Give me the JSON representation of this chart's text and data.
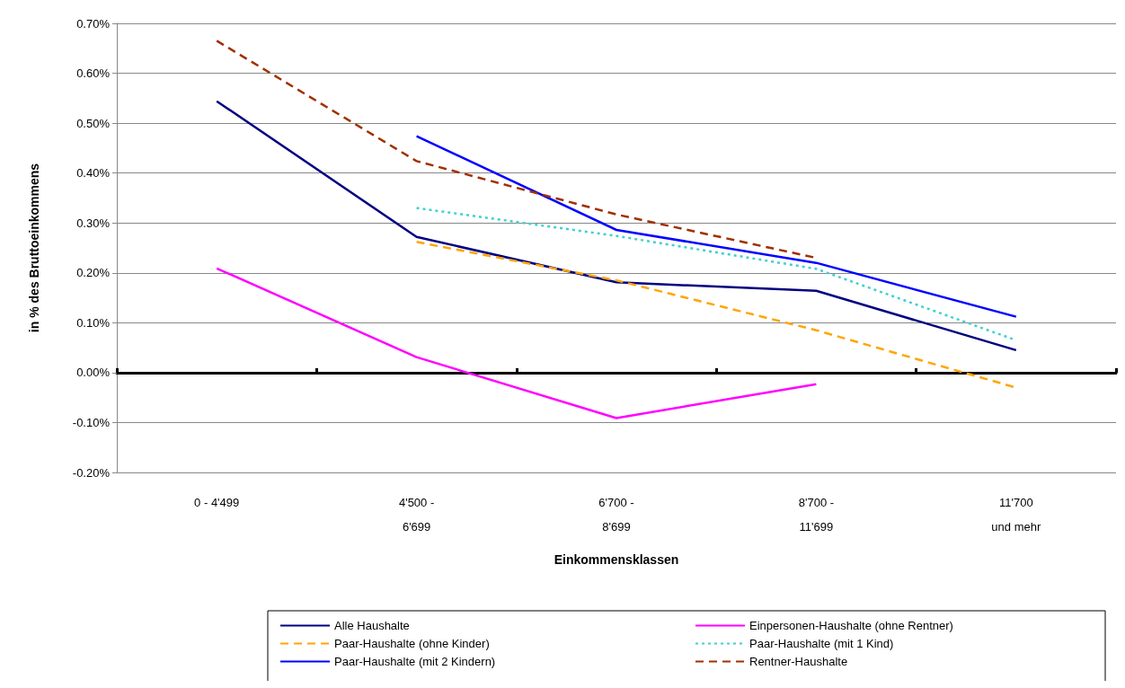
{
  "chart_data": {
    "type": "line",
    "xlabel": "Einkommensklassen",
    "ylabel": "in % des Bruttoeinkommens",
    "categories": [
      "0 - 4'499",
      "4'500 -\n6'699",
      "6'700 -\n8'699",
      "8'700 -\n11'699",
      "11'700\nund mehr"
    ],
    "ylim": [
      -0.2,
      0.7
    ],
    "yticks": [
      {
        "value": -0.2,
        "label": "-0.20%"
      },
      {
        "value": -0.1,
        "label": "-0.10%"
      },
      {
        "value": 0,
        "label": "0.00%"
      },
      {
        "value": 0.1,
        "label": "0.10%"
      },
      {
        "value": 0.2,
        "label": "0.20%"
      },
      {
        "value": 0.3,
        "label": "0.30%"
      },
      {
        "value": 0.4,
        "label": "0.40%"
      },
      {
        "value": 0.5,
        "label": "0.50%"
      },
      {
        "value": 0.6,
        "label": "0.60%"
      },
      {
        "value": 0.7,
        "label": "0.70%"
      }
    ],
    "grid": "y",
    "legend": "bottom",
    "marker": "none",
    "series": [
      {
        "name": "Alle Haushalte",
        "color": "#000080",
        "line_style": "solid",
        "values": [
          0.544,
          0.272,
          0.181,
          0.164,
          0.045
        ]
      },
      {
        "name": "Einpersonen-Haushalte (ohne Rentner)",
        "color": "#ff00ff",
        "line_style": "solid",
        "values": [
          0.209,
          0.031,
          -0.091,
          -0.023,
          null
        ]
      },
      {
        "name": "Paar-Haushalte (ohne Kinder)",
        "color": "#ffa500",
        "line_style": "dashed",
        "values": [
          null,
          0.262,
          0.185,
          0.085,
          -0.03
        ]
      },
      {
        "name": "Paar-Haushalte (mit 1 Kind)",
        "color": "#40d0d0",
        "line_style": "dotted",
        "values": [
          null,
          0.33,
          0.274,
          0.208,
          0.065
        ]
      },
      {
        "name": "Paar-Haushalte (mit 2 Kindern)",
        "color": "#0000ff",
        "line_style": "solid",
        "values": [
          null,
          0.474,
          0.286,
          0.22,
          0.112
        ]
      },
      {
        "name": "Rentner-Haushalte",
        "color": "#a03000",
        "line_style": "dashed",
        "values": [
          0.665,
          0.424,
          0.317,
          0.23,
          null
        ]
      }
    ]
  }
}
